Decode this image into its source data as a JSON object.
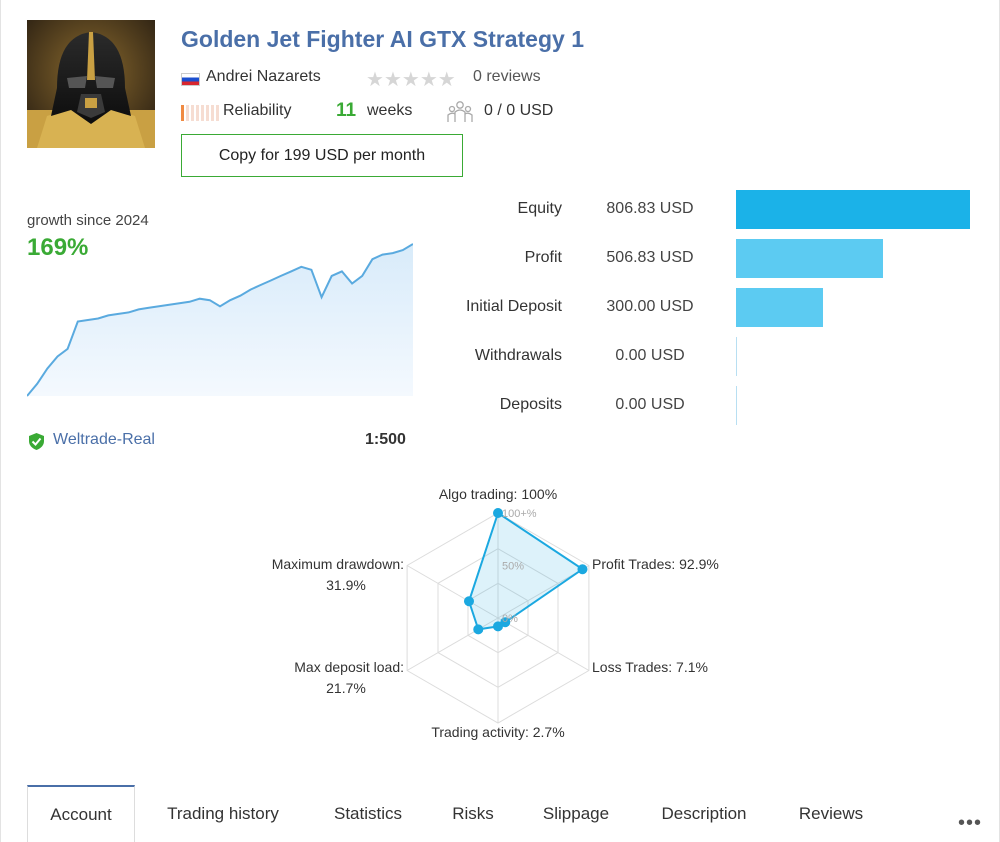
{
  "signal": {
    "title": "Golden Jet Fighter AI GTX Strategy 1",
    "author": "Andrei Nazarets",
    "rating_stars": 0,
    "reviews": "0 reviews",
    "reliability_label": "Reliability",
    "reliability_level": 1,
    "weeks_num": "11",
    "weeks_label": "weeks",
    "subscribers": "0 / 0 USD",
    "copy_button": "Copy for 199 USD per month"
  },
  "growth": {
    "label": "growth since 2024",
    "value": "169%",
    "color": "#3aaa35",
    "curve": [
      0,
      8,
      18,
      26,
      31,
      49,
      50,
      51,
      53,
      54,
      55,
      57,
      58,
      59,
      60,
      61,
      62,
      64,
      63,
      59,
      63,
      66,
      70,
      73,
      76,
      79,
      82,
      85,
      83,
      65,
      79,
      82,
      74,
      79,
      90,
      93,
      94,
      96,
      100
    ]
  },
  "account": {
    "broker": "Weltrade-Real",
    "leverage": "1:500"
  },
  "balance": {
    "rows": [
      {
        "label": "Equity",
        "value": "806.83 USD",
        "amount": 806.83,
        "color": "#1bb2e8"
      },
      {
        "label": "Profit",
        "value": "506.83 USD",
        "amount": 506.83,
        "color": "#5ccbf2"
      },
      {
        "label": "Initial Deposit",
        "value": "300.00 USD",
        "amount": 300.0,
        "color": "#5ccbf2"
      },
      {
        "label": "Withdrawals",
        "value": "0.00 USD",
        "amount": 0,
        "color": "#5ccbf2"
      },
      {
        "label": "Deposits",
        "value": "0.00 USD",
        "amount": 0,
        "color": "#5ccbf2"
      }
    ]
  },
  "radar": {
    "tick_max": "100+%",
    "tick_mid": "50%",
    "tick_zero": "0%",
    "axes": [
      {
        "line1": "Algo trading: 100%",
        "line2": "",
        "value": 100
      },
      {
        "line1": "Profit Trades: 92.9%",
        "line2": "",
        "value": 92.9
      },
      {
        "line1": "Loss Trades: 7.1%",
        "line2": "",
        "value": 7.1
      },
      {
        "line1": "Trading activity: 2.7%",
        "line2": "",
        "value": 2.7
      },
      {
        "line1": "Max deposit load:",
        "line2": "21.7%",
        "value": 21.7
      },
      {
        "line1": "Maximum drawdown:",
        "line2": "31.9%",
        "value": 31.9
      }
    ],
    "accent": "#1ba8e0"
  },
  "tabs": {
    "items": [
      "Account",
      "Trading history",
      "Statistics",
      "Risks",
      "Slippage",
      "Description",
      "Reviews"
    ],
    "active": "Account",
    "more": "•••"
  }
}
